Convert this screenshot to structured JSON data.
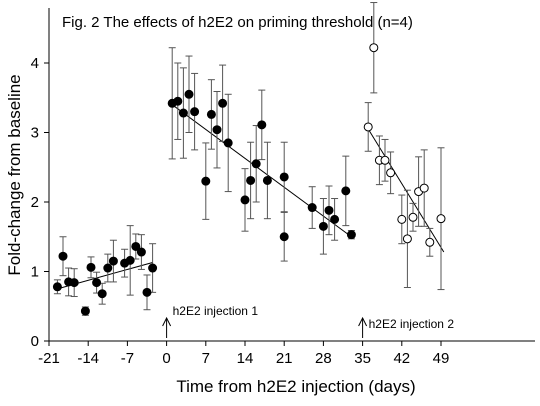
{
  "chart_data": {
    "type": "scatter",
    "title": "Fig. 2 The effects of h2E2 on priming threshold (n=4)",
    "xlabel": "Time from h2E2 injection (days)",
    "ylabel": "Fold-change from baseline",
    "xlim": [
      -21,
      50
    ],
    "ylim": [
      0,
      4.7
    ],
    "xticks": [
      -21,
      -14,
      -7,
      0,
      7,
      14,
      21,
      28,
      35,
      42,
      49
    ],
    "yticks": [
      0,
      1,
      2,
      3,
      4
    ],
    "grid": false,
    "legend": "none",
    "annotations": [
      {
        "text": "h2E2 injection 1",
        "x": 0
      },
      {
        "text": "h2E2 injection 2",
        "x": 35
      }
    ],
    "series": [
      {
        "marker": "filled",
        "points": [
          {
            "x": -19.5,
            "y": 0.78,
            "err": 0.1
          },
          {
            "x": -18.5,
            "y": 1.22,
            "err": 0.28
          },
          {
            "x": -17.5,
            "y": 0.85,
            "err": 0.2
          },
          {
            "x": -16.5,
            "y": 0.84,
            "err": 0.2
          },
          {
            "x": -14.5,
            "y": 0.43,
            "err": 0.06
          },
          {
            "x": -13.5,
            "y": 1.06,
            "err": 0.15
          },
          {
            "x": -12.5,
            "y": 0.84,
            "err": 0.15
          },
          {
            "x": -11.5,
            "y": 0.68,
            "err": 0.15
          },
          {
            "x": -10.5,
            "y": 1.05,
            "err": 0.2
          },
          {
            "x": -9.5,
            "y": 1.15,
            "err": 0.3
          },
          {
            "x": -7.5,
            "y": 1.12,
            "err": 0.2
          },
          {
            "x": -6.5,
            "y": 1.16,
            "err": 0.5
          },
          {
            "x": -5.5,
            "y": 1.36,
            "err": 0.18
          },
          {
            "x": -4.5,
            "y": 1.28,
            "err": 0.25
          },
          {
            "x": -3.5,
            "y": 0.7,
            "err": 0.25
          },
          {
            "x": -2.5,
            "y": 1.05,
            "err": 0.35
          },
          {
            "x": 1,
            "y": 3.42,
            "err": 0.8
          },
          {
            "x": 2,
            "y": 3.45,
            "err": 0.55
          },
          {
            "x": 3,
            "y": 3.28,
            "err": 0.65
          },
          {
            "x": 4,
            "y": 3.55,
            "err": 0.55
          },
          {
            "x": 5,
            "y": 3.3,
            "err": 0.55
          },
          {
            "x": 7,
            "y": 2.3,
            "err": 0.55
          },
          {
            "x": 8,
            "y": 3.26,
            "err": 0.5
          },
          {
            "x": 9,
            "y": 3.04,
            "err": 0.55
          },
          {
            "x": 10,
            "y": 3.42,
            "err": 0.55
          },
          {
            "x": 11,
            "y": 2.85,
            "err": 0.7
          },
          {
            "x": 14,
            "y": 2.03,
            "err": 0.45
          },
          {
            "x": 15,
            "y": 2.31,
            "err": 0.55
          },
          {
            "x": 16,
            "y": 2.55,
            "err": 0.55
          },
          {
            "x": 17,
            "y": 3.11,
            "err": 0.5
          },
          {
            "x": 18,
            "y": 2.31,
            "err": 0.55
          },
          {
            "x": 21,
            "y": 2.36,
            "err": 0.5
          },
          {
            "x": 21,
            "y": 1.5,
            "err": 0.35
          },
          {
            "x": 26,
            "y": 1.92,
            "err": 0.3
          },
          {
            "x": 28,
            "y": 1.65,
            "err": 0.4
          },
          {
            "x": 29,
            "y": 1.88,
            "err": 0.35
          },
          {
            "x": 30,
            "y": 1.75,
            "err": 0.3
          },
          {
            "x": 32,
            "y": 2.16,
            "err": 0.5
          },
          {
            "x": 33,
            "y": 1.53,
            "err": 0.06
          }
        ]
      },
      {
        "marker": "open",
        "points": [
          {
            "x": 36,
            "y": 3.08,
            "err": 0.35
          },
          {
            "x": 37,
            "y": 4.22,
            "err": 0.65
          },
          {
            "x": 38,
            "y": 2.6,
            "err": 0.35
          },
          {
            "x": 39,
            "y": 2.6,
            "err": 0.3
          },
          {
            "x": 40,
            "y": 2.42,
            "err": 0.3
          },
          {
            "x": 42,
            "y": 1.75,
            "err": 0.35
          },
          {
            "x": 43,
            "y": 1.47,
            "err": 0.7
          },
          {
            "x": 44,
            "y": 1.78,
            "err": 0.2
          },
          {
            "x": 45,
            "y": 2.15,
            "err": 0.5
          },
          {
            "x": 46,
            "y": 2.2,
            "err": 0.55
          },
          {
            "x": 47,
            "y": 1.42,
            "err": 0.2
          },
          {
            "x": 49,
            "y": 1.76,
            "err": 1.02
          }
        ]
      }
    ],
    "trendlines": [
      {
        "x1": -19.5,
        "y1": 0.75,
        "x2": -2.5,
        "y2": 1.13
      },
      {
        "x1": 1,
        "y1": 3.4,
        "x2": 33,
        "y2": 1.5
      },
      {
        "x1": 36,
        "y1": 3.05,
        "x2": 49.5,
        "y2": 1.28
      }
    ]
  }
}
